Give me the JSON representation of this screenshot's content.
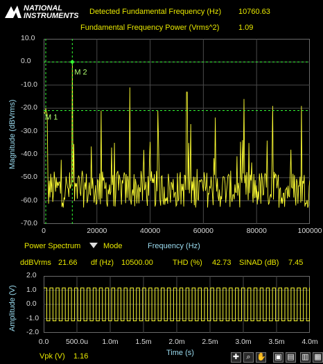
{
  "brand": {
    "line1": "NATIONAL",
    "line2": "INSTRUMENTS"
  },
  "header": {
    "freq_label": "Detected Fundamental Frequency (Hz)",
    "freq_value": "10760.63",
    "power_label": "Fundamental Frequency Power (Vrms^2)",
    "power_value": "1.09"
  },
  "spectrum": {
    "ylabel": "Magnitude (dBVrms)",
    "xlabel": "Frequency (Hz)",
    "yticks": [
      "10.0",
      "0.0",
      "-10.0",
      "-20.0",
      "-30.0",
      "-40.0",
      "-50.0",
      "-60.0",
      "-70.0"
    ],
    "xticks": [
      "0",
      "20000",
      "40000",
      "60000",
      "80000",
      "100000"
    ],
    "markers": {
      "m1": "M 1",
      "m2": "M 2"
    },
    "mode_label": "Power Spectrum",
    "mode_button": "Mode"
  },
  "stats": {
    "ddbvrms_label": "ddBVrms",
    "ddbvrms_value": "21.66",
    "df_label": "df (Hz)",
    "df_value": "10500.00",
    "thd_label": "THD (%)",
    "thd_value": "42.73",
    "sinad_label": "SINAD (dB)",
    "sinad_value": "7.45"
  },
  "time_plot": {
    "ylabel": "Amplitude (V)",
    "xlabel": "Time (s)",
    "yticks": [
      "2.0",
      "1.0",
      "0.0",
      "-1.0",
      "-2.0"
    ],
    "xticks": [
      "0.0",
      "500.0u",
      "1.0m",
      "1.5m",
      "2.0m",
      "2.5m",
      "3.0m",
      "3.5m",
      "4.0m"
    ]
  },
  "footer": {
    "vpk_label": "Vpk (V)",
    "vpk_value": "1.16"
  },
  "colors": {
    "trace": "#ffff33",
    "grid": "#4a4a4a",
    "label": "#e8e800",
    "axis_title": "#9bdcf0",
    "marker": "#33ff33"
  },
  "chart_data": [
    {
      "type": "line",
      "title": "",
      "xlabel": "Frequency (Hz)",
      "ylabel": "Magnitude (dBVrms)",
      "xlim": [
        0,
        100000
      ],
      "ylim": [
        -70,
        10
      ],
      "grid": true,
      "peaks": {
        "x": [
          10760,
          21500,
          32300,
          43000,
          53800,
          64500,
          75300,
          86000,
          96800
        ],
        "y": [
          0,
          -21,
          -11,
          -21,
          -13,
          -24,
          -16,
          -19,
          -19
        ]
      },
      "noise_floor_db": -55
    },
    {
      "type": "line",
      "title": "",
      "xlabel": "Time (s)",
      "ylabel": "Amplitude (V)",
      "xlim": [
        0,
        0.004
      ],
      "ylim": [
        -2,
        2
      ],
      "grid": true,
      "waveform": "square",
      "frequency_hz": 10760,
      "amplitude_v": 1.16
    }
  ]
}
